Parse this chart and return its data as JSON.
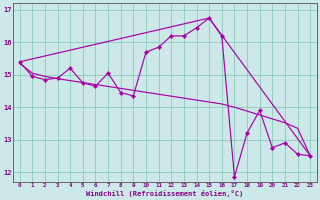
{
  "xlabel": "Windchill (Refroidissement éolien,°C)",
  "bg_color": "#cce8e8",
  "line_color": "#aa00aa",
  "grid_color": "#88ccbb",
  "axis_color": "#880088",
  "spine_color": "#666666",
  "xlim": [
    -0.5,
    23.5
  ],
  "ylim": [
    11.7,
    17.2
  ],
  "yticks": [
    12,
    13,
    14,
    15,
    16,
    17
  ],
  "xticks": [
    0,
    1,
    2,
    3,
    4,
    5,
    6,
    7,
    8,
    9,
    10,
    11,
    12,
    13,
    14,
    15,
    16,
    17,
    18,
    19,
    20,
    21,
    22,
    23
  ],
  "series1_x": [
    0,
    1,
    2,
    3,
    4,
    5,
    6,
    7,
    8,
    9,
    10,
    11,
    12,
    13,
    14,
    15,
    16,
    17,
    18,
    19,
    20,
    21,
    22,
    23
  ],
  "series1_y": [
    15.4,
    14.95,
    14.85,
    14.9,
    15.2,
    14.75,
    14.65,
    15.05,
    14.45,
    14.35,
    15.7,
    15.85,
    16.2,
    16.2,
    16.45,
    16.75,
    16.2,
    11.85,
    13.2,
    13.9,
    12.75,
    12.9,
    12.55,
    12.5
  ],
  "series2_x": [
    0,
    1,
    2,
    3,
    4,
    5,
    6,
    7,
    8,
    9,
    10,
    11,
    12,
    13,
    14,
    15,
    16,
    17,
    18,
    19,
    20,
    21,
    22,
    23
  ],
  "series2_y": [
    15.35,
    15.05,
    14.95,
    14.88,
    14.82,
    14.76,
    14.7,
    14.64,
    14.58,
    14.52,
    14.46,
    14.4,
    14.34,
    14.28,
    14.22,
    14.16,
    14.1,
    14.0,
    13.88,
    13.76,
    13.64,
    13.52,
    13.35,
    12.5
  ],
  "series3_x": [
    0,
    15,
    23
  ],
  "series3_y": [
    15.4,
    16.75,
    12.5
  ]
}
